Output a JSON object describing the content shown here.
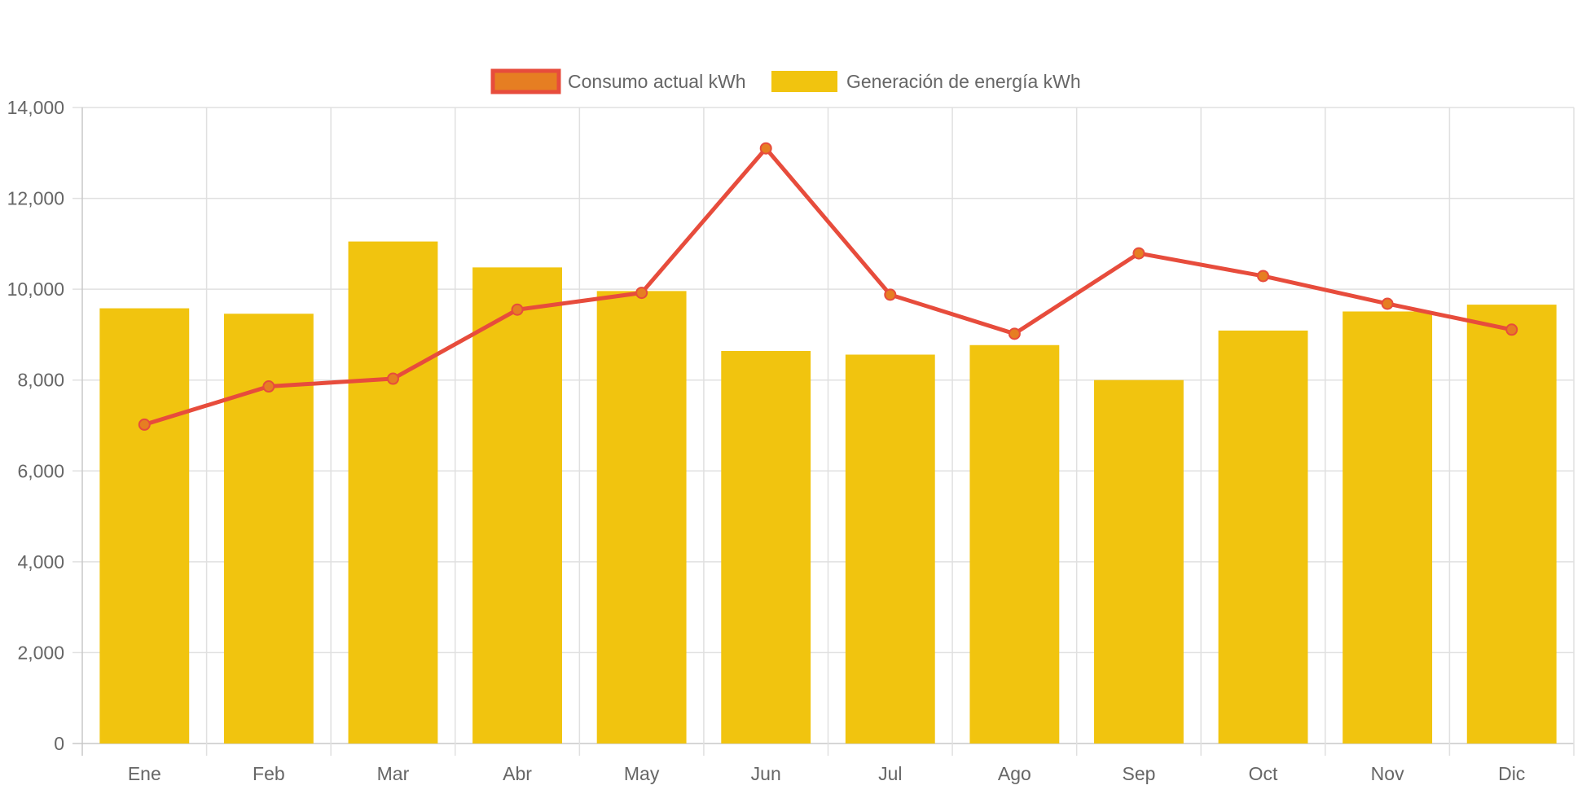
{
  "chart_data": {
    "type": "bar",
    "title": "",
    "xlabel": "",
    "ylabel": "",
    "categories": [
      "Ene",
      "Feb",
      "Mar",
      "Abr",
      "May",
      "Jun",
      "Jul",
      "Ago",
      "Sep",
      "Oct",
      "Nov",
      "Dic"
    ],
    "ylim": [
      0,
      14000
    ],
    "yticks": [
      0,
      2000,
      4000,
      6000,
      8000,
      10000,
      12000,
      14000
    ],
    "ytick_labels": [
      "0",
      "2,000",
      "4,000",
      "6,000",
      "8,000",
      "10,000",
      "12,000",
      "14,000"
    ],
    "grid": true,
    "legend_position": "top-center",
    "series": [
      {
        "name": "Consumo actual kWh",
        "type": "line",
        "color": "#e74c3c",
        "point_color": "#e67e22",
        "values": [
          7020,
          7860,
          8030,
          9550,
          9920,
          13100,
          9880,
          9020,
          10790,
          10290,
          9680,
          9110
        ]
      },
      {
        "name": "Generación de energía kWh",
        "type": "bar",
        "color": "#f1c40f",
        "values": [
          9580,
          9460,
          11050,
          10480,
          9960,
          8640,
          8560,
          8770,
          8000,
          9090,
          9510,
          9660
        ]
      }
    ]
  }
}
